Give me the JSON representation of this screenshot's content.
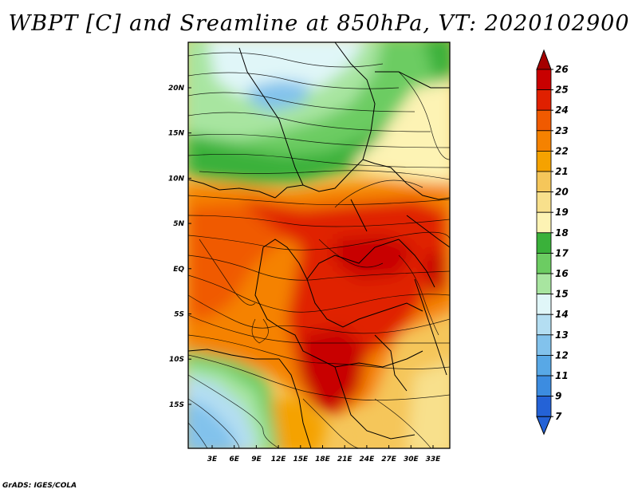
{
  "title": "WBPT [C] and Sreamline at 850hPa, VT: 2020102900",
  "credit": "GrADS: IGES/COLA",
  "map": {
    "longitude_labels": [
      "3E",
      "6E",
      "9E",
      "12E",
      "15E",
      "18E",
      "21E",
      "24E",
      "27E",
      "30E",
      "33E"
    ],
    "latitude_labels": [
      "20N",
      "15N",
      "10N",
      "5N",
      "EQ",
      "5S",
      "10S",
      "15S"
    ],
    "lon_range": [
      0,
      36
    ],
    "lat_range": [
      -20,
      25
    ],
    "field": "WBPT",
    "streamlines": true
  },
  "colorbar": {
    "labels": [
      "26",
      "25",
      "24",
      "23",
      "22",
      "21",
      "20",
      "19",
      "18",
      "17",
      "16",
      "15",
      "14",
      "13",
      "12",
      "11",
      "9",
      "7"
    ],
    "colors": [
      "#a50000",
      "#c80000",
      "#e02000",
      "#f05a00",
      "#f58200",
      "#f5a200",
      "#f5c65a",
      "#f8e08c",
      "#fdf3b4",
      "#3ab13a",
      "#6ccc62",
      "#a8e5a0",
      "#e0f6f8",
      "#b4def2",
      "#82c2ec",
      "#58a8e6",
      "#3c8ce0",
      "#2462d6"
    ]
  }
}
